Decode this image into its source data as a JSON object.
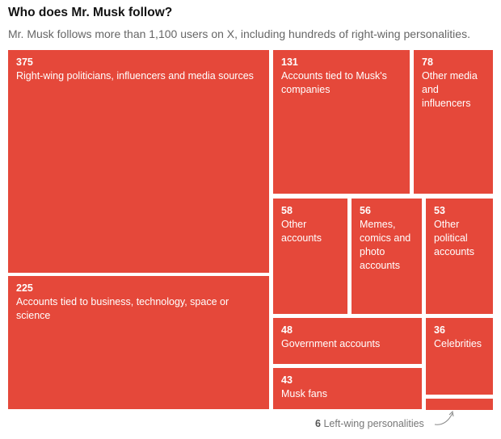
{
  "title": "Who does Mr. Musk follow?",
  "subtitle": "Mr. Musk follows more than 1,100 users on X, including hundreds of right-wing personalities.",
  "chart_data": {
    "type": "treemap",
    "title": "Who does Mr. Musk follow?",
    "subtitle": "Mr. Musk follows more than 1,100 users on X, including hundreds of right-wing personalities.",
    "color": "#e5483a",
    "items": [
      {
        "label": "Right-wing politicians, influencers and media sources",
        "value": 375
      },
      {
        "label": "Accounts tied to business, technology, space or science",
        "value": 225
      },
      {
        "label": "Accounts tied to Musk's companies",
        "value": 131
      },
      {
        "label": "Other media and influencers",
        "value": 78
      },
      {
        "label": "Other accounts",
        "value": 58
      },
      {
        "label": "Memes, comics and photo accounts",
        "value": 56
      },
      {
        "label": "Other political accounts",
        "value": 53
      },
      {
        "label": "Government accounts",
        "value": 48
      },
      {
        "label": "Celebrities",
        "value": 36
      },
      {
        "label": "Musk fans",
        "value": 43
      },
      {
        "label": "Left-wing personalities",
        "value": 6
      }
    ]
  }
}
